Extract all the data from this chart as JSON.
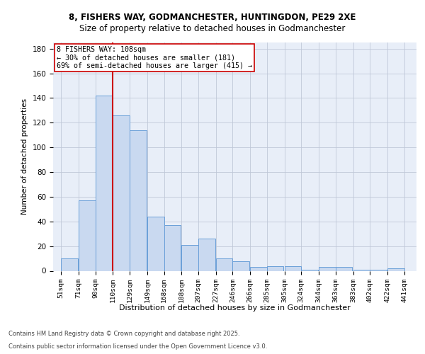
{
  "title1": "8, FISHERS WAY, GODMANCHESTER, HUNTINGDON, PE29 2XE",
  "title2": "Size of property relative to detached houses in Godmanchester",
  "xlabel": "Distribution of detached houses by size in Godmanchester",
  "ylabel": "Number of detached properties",
  "categories": [
    "51sqm",
    "71sqm",
    "90sqm",
    "110sqm",
    "129sqm",
    "149sqm",
    "168sqm",
    "188sqm",
    "207sqm",
    "227sqm",
    "246sqm",
    "266sqm",
    "285sqm",
    "305sqm",
    "324sqm",
    "344sqm",
    "363sqm",
    "383sqm",
    "402sqm",
    "422sqm",
    "441sqm"
  ],
  "bin_starts": [
    51,
    71,
    90,
    110,
    129,
    149,
    168,
    188,
    207,
    227,
    246,
    266,
    285,
    305,
    324,
    344,
    363,
    383,
    402,
    422
  ],
  "bin_width": 19,
  "heights": [
    10,
    57,
    142,
    126,
    114,
    44,
    37,
    21,
    26,
    10,
    8,
    3,
    4,
    4,
    1,
    3,
    3,
    1,
    1,
    2
  ],
  "bar_color": "#c9d9f0",
  "bar_edge_color": "#6a9fd8",
  "vline_x": 110,
  "vline_color": "#cc0000",
  "annotation_text": "8 FISHERS WAY: 108sqm\n← 30% of detached houses are smaller (181)\n69% of semi-detached houses are larger (415) →",
  "annotation_box_color": "#cc0000",
  "bg_color": "#e8eef8",
  "grid_color": "#c0c8d8",
  "ylim": [
    0,
    185
  ],
  "xlim_left": 42,
  "xlim_right": 455,
  "yticks": [
    0,
    20,
    40,
    60,
    80,
    100,
    120,
    140,
    160,
    180
  ],
  "tick_positions": [
    51,
    71,
    90,
    110,
    129,
    149,
    168,
    188,
    207,
    227,
    246,
    266,
    285,
    305,
    324,
    344,
    363,
    383,
    402,
    422,
    441
  ],
  "footer1": "Contains HM Land Registry data © Crown copyright and database right 2025.",
  "footer2": "Contains public sector information licensed under the Open Government Licence v3.0."
}
